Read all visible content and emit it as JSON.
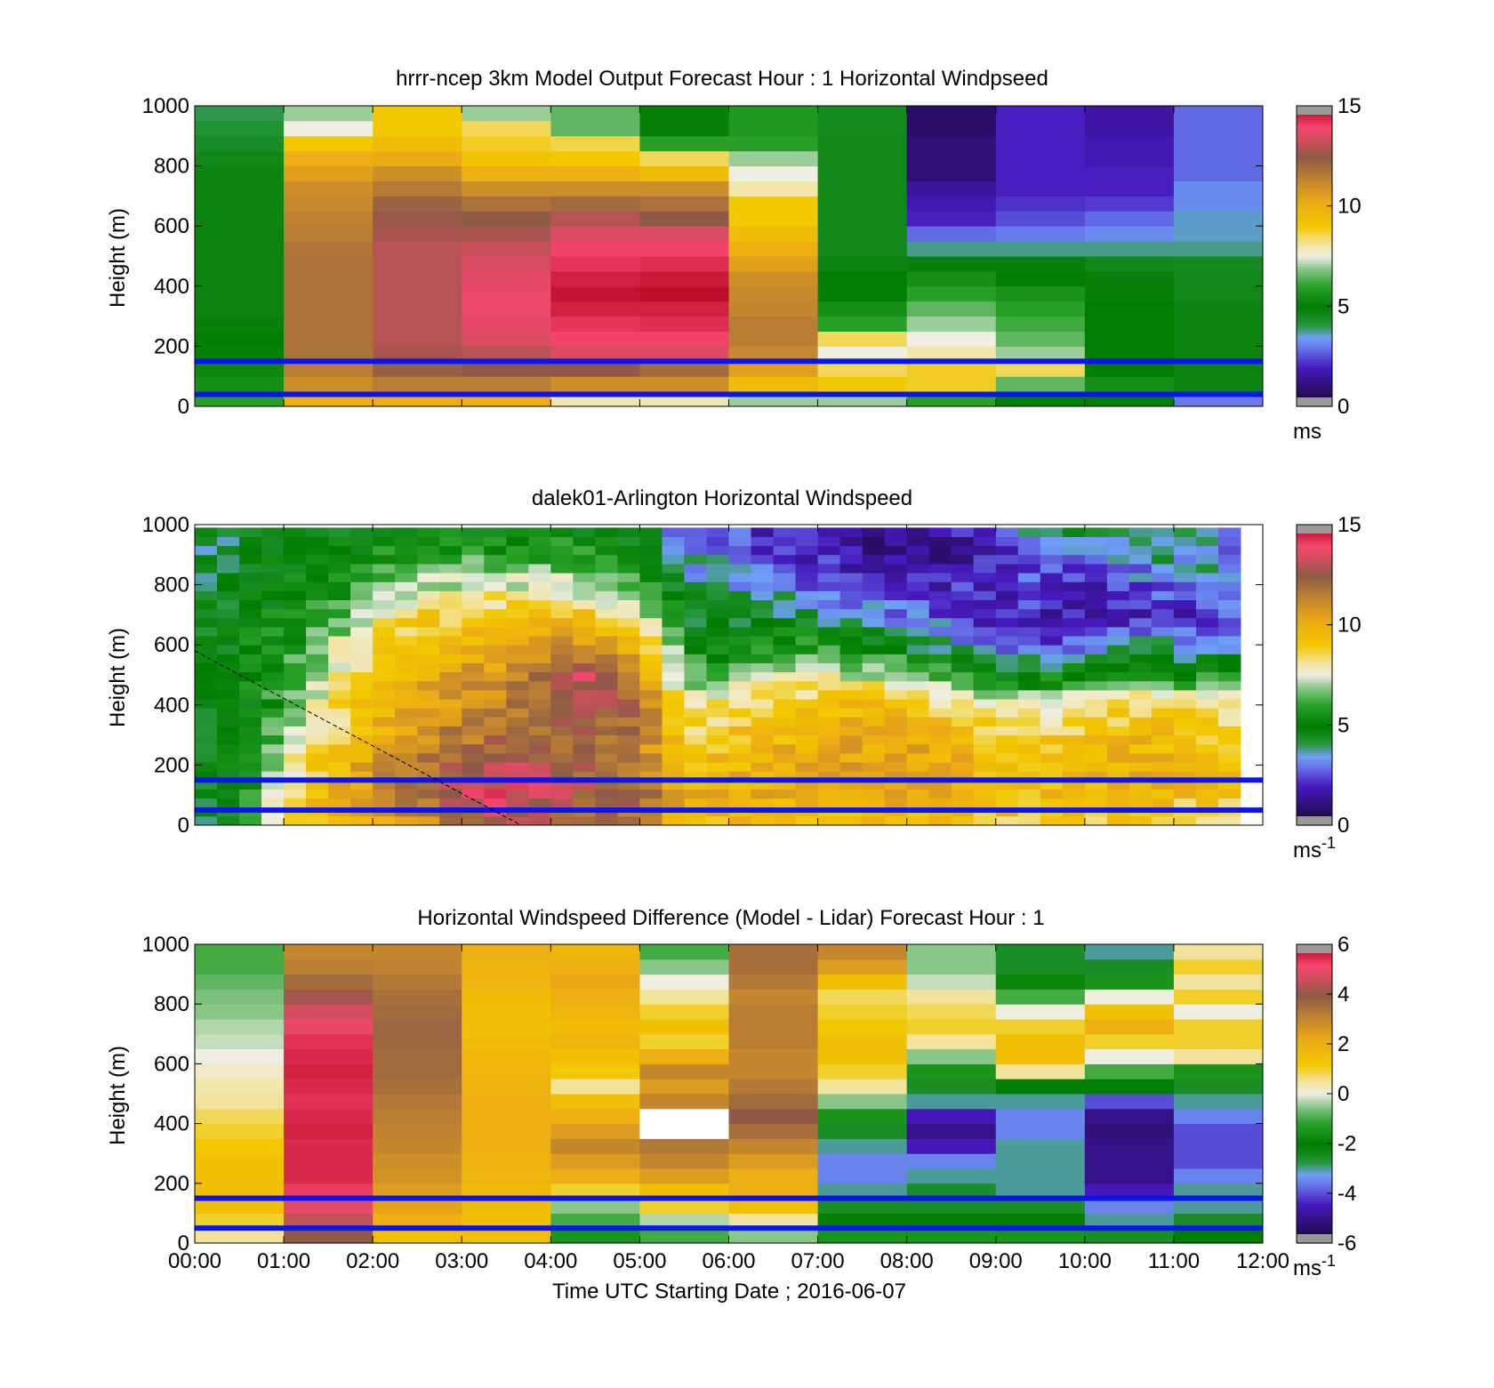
{
  "chart_data": [
    {
      "type": "heatmap",
      "title": "hrrr-ncep 3km Model Output   Forecast Hour : 1 Horizontal Windpseed",
      "ylabel": "Height (m)",
      "ylim": [
        0,
        1000
      ],
      "yticks": [
        "0",
        "200",
        "400",
        "600",
        "800",
        "1000"
      ],
      "x_hours": [
        "00:00",
        "01:00",
        "02:00",
        "03:00",
        "04:00",
        "05:00",
        "06:00",
        "07:00",
        "08:00",
        "09:00",
        "10:00",
        "11:00",
        "12:00"
      ],
      "height_levels": [
        25,
        75,
        125,
        175,
        225,
        275,
        325,
        375,
        425,
        475,
        525,
        575,
        625,
        675,
        725,
        775,
        825,
        875,
        925,
        975
      ],
      "values": [
        [
          6.0,
          5.5,
          5.3,
          5.1,
          4.9,
          4.8,
          4.7,
          4.7,
          4.7,
          4.7,
          4.7,
          4.7,
          4.7,
          4.7,
          4.7,
          4.7,
          4.6,
          4.4,
          4.2,
          4.0
        ],
        [
          10.0,
          11.0,
          11.5,
          11.8,
          11.8,
          11.8,
          11.8,
          11.8,
          11.8,
          11.8,
          11.7,
          11.5,
          11.4,
          11.2,
          11.0,
          10.5,
          10.0,
          9.0,
          7.5,
          7.0
        ],
        [
          10.0,
          11.5,
          12.3,
          12.8,
          13.0,
          13.0,
          13.0,
          13.0,
          13.0,
          13.0,
          13.0,
          12.8,
          12.6,
          12.2,
          11.6,
          11.0,
          10.2,
          9.5,
          9.0,
          9.0
        ],
        [
          10.0,
          11.5,
          12.5,
          13.0,
          13.5,
          13.7,
          13.8,
          13.8,
          13.7,
          13.5,
          13.2,
          12.8,
          12.4,
          11.8,
          11.0,
          10.0,
          9.2,
          8.8,
          8.5,
          7.0
        ],
        [
          8.0,
          11.0,
          12.5,
          13.5,
          14.0,
          14.2,
          14.5,
          14.7,
          14.5,
          14.2,
          14.0,
          13.5,
          13.0,
          12.0,
          11.0,
          10.0,
          9.0,
          8.6,
          6.5,
          6.5
        ],
        [
          8.0,
          11.0,
          12.0,
          13.5,
          14.0,
          14.3,
          14.5,
          14.8,
          14.6,
          14.3,
          14.0,
          13.5,
          12.5,
          11.8,
          11.0,
          9.5,
          8.5,
          6.0,
          4.8,
          4.8
        ],
        [
          7.0,
          9.5,
          10.5,
          11.2,
          11.5,
          11.5,
          11.3,
          11.2,
          11.0,
          10.5,
          10.0,
          9.5,
          9.0,
          9.0,
          8.0,
          7.5,
          7.0,
          6.0,
          5.8,
          5.8
        ],
        [
          7.0,
          9.0,
          8.5,
          7.5,
          8.5,
          6.0,
          5.5,
          5.0,
          4.9,
          4.7,
          4.6,
          4.6,
          4.6,
          4.6,
          4.6,
          4.6,
          4.6,
          4.6,
          4.5,
          4.5
        ],
        [
          6.0,
          8.8,
          8.8,
          8.0,
          7.5,
          7.0,
          6.5,
          6.0,
          5.5,
          4.8,
          3.8,
          2.8,
          2.0,
          1.8,
          1.5,
          1.0,
          1.0,
          1.0,
          0.8,
          0.8
        ],
        [
          5.0,
          6.5,
          8.5,
          7.0,
          6.5,
          6.2,
          6.0,
          5.6,
          5.0,
          4.8,
          3.8,
          3.0,
          2.5,
          2.2,
          2.0,
          2.0,
          2.0,
          2.0,
          2.0,
          2.0
        ],
        [
          5.0,
          5.5,
          5.0,
          5.0,
          5.0,
          5.0,
          4.9,
          4.8,
          4.8,
          4.6,
          3.8,
          3.2,
          2.8,
          2.3,
          2.0,
          2.0,
          1.8,
          1.8,
          1.6,
          1.6
        ],
        [
          3.0,
          4.7,
          4.7,
          4.7,
          4.7,
          4.7,
          4.7,
          4.6,
          4.6,
          4.5,
          3.8,
          3.6,
          3.6,
          3.2,
          3.2,
          2.8,
          2.8,
          2.8,
          2.8,
          2.8
        ]
      ],
      "colorbar": {
        "ticks": [
          "0",
          "5",
          "10",
          "15"
        ],
        "range": [
          0,
          15
        ],
        "unit": "ms"
      },
      "reference_lines_m": [
        40,
        150
      ]
    },
    {
      "type": "heatmap",
      "title": "dalek01-Arlington  Horizontal Windspeed",
      "ylabel": "Height (m)",
      "ylim": [
        0,
        1000
      ],
      "yticks": [
        "0",
        "200",
        "400",
        "600",
        "800",
        "1000"
      ],
      "x_hours": [
        "00:00",
        "01:00",
        "02:00",
        "03:00",
        "04:00",
        "05:00",
        "06:00",
        "07:00",
        "08:00",
        "09:00",
        "10:00",
        "11:00",
        "12:00"
      ],
      "profile_columns": 48,
      "height_levels": [
        15,
        45,
        75,
        105,
        135,
        165,
        195,
        225,
        255,
        285,
        315,
        345,
        375,
        405,
        435,
        465,
        495,
        525,
        555,
        585,
        615,
        645,
        675,
        705,
        735,
        765,
        795,
        825,
        855,
        885,
        915,
        945,
        975
      ],
      "anchor_times_h": [
        0.0,
        0.5,
        1.0,
        1.5,
        2.0,
        2.5,
        3.0,
        3.5,
        4.0,
        4.5,
        5.0,
        5.5,
        6.0,
        6.5,
        7.0,
        7.5,
        8.0,
        8.5,
        9.0,
        9.5,
        10.0,
        10.5,
        11.0,
        11.5,
        11.9
      ],
      "anchor_profiles": {
        "heights_m": [
          25,
          100,
          200,
          300,
          400,
          500,
          600,
          700,
          800,
          900,
          975
        ],
        "values": [
          [
            4.5,
            4.5,
            4.6,
            4.6,
            4.6,
            4.7,
            4.7,
            4.5,
            4.3,
            4.2,
            4.0
          ],
          [
            4.8,
            5.0,
            5.0,
            5.0,
            5.0,
            5.0,
            5.0,
            5.0,
            4.8,
            4.6,
            4.4
          ],
          [
            8.0,
            8.5,
            7.5,
            6.5,
            6.0,
            6.0,
            5.5,
            5.3,
            5.0,
            4.9,
            4.8
          ],
          [
            9.0,
            10.0,
            9.0,
            8.5,
            8.0,
            7.5,
            7.0,
            6.0,
            5.5,
            5.0,
            5.0
          ],
          [
            10.0,
            11.0,
            10.5,
            10.0,
            9.5,
            9.0,
            8.5,
            7.5,
            6.5,
            5.5,
            5.0
          ],
          [
            11.0,
            12.0,
            11.5,
            11.0,
            10.5,
            10.0,
            9.5,
            8.5,
            7.0,
            6.0,
            5.0
          ],
          [
            12.0,
            13.0,
            12.5,
            11.5,
            11.0,
            10.5,
            9.5,
            9.0,
            7.5,
            6.0,
            5.0
          ],
          [
            13.0,
            14.0,
            13.0,
            12.0,
            11.5,
            11.0,
            10.0,
            9.0,
            7.5,
            6.0,
            5.0
          ],
          [
            12.0,
            13.5,
            12.5,
            12.0,
            12.0,
            12.5,
            11.0,
            9.5,
            7.5,
            6.0,
            5.0
          ],
          [
            12.0,
            12.5,
            12.0,
            12.0,
            13.0,
            13.5,
            10.5,
            9.0,
            7.0,
            6.0,
            5.0
          ],
          [
            11.5,
            12.0,
            11.5,
            11.5,
            12.0,
            11.0,
            9.5,
            8.0,
            6.5,
            5.5,
            4.5
          ],
          [
            9.5,
            10.0,
            9.5,
            9.0,
            8.0,
            6.0,
            5.5,
            4.5,
            4.0,
            3.5,
            3.0
          ],
          [
            9.5,
            10.0,
            9.5,
            9.0,
            8.5,
            6.5,
            5.0,
            4.0,
            3.5,
            3.0,
            2.5
          ],
          [
            9.5,
            10.0,
            10.0,
            9.5,
            9.0,
            7.5,
            5.5,
            4.5,
            3.5,
            2.5,
            2.0
          ],
          [
            9.5,
            10.0,
            10.5,
            10.0,
            9.0,
            7.5,
            6.0,
            4.0,
            2.5,
            2.0,
            1.5
          ],
          [
            9.5,
            10.0,
            10.5,
            10.0,
            9.5,
            7.5,
            5.5,
            3.5,
            2.0,
            1.5,
            1.0
          ],
          [
            9.5,
            10.0,
            10.5,
            10.0,
            9.0,
            7.0,
            4.5,
            3.0,
            2.0,
            1.5,
            1.0
          ],
          [
            9.5,
            10.0,
            10.0,
            9.5,
            8.5,
            6.0,
            3.5,
            2.5,
            2.0,
            1.5,
            1.5
          ],
          [
            9.0,
            9.5,
            9.5,
            9.0,
            7.5,
            5.0,
            2.5,
            2.0,
            2.0,
            2.0,
            2.5
          ],
          [
            9.0,
            9.5,
            9.5,
            9.0,
            7.5,
            5.0,
            2.5,
            2.0,
            2.5,
            3.0,
            3.5
          ],
          [
            9.0,
            9.5,
            9.5,
            9.0,
            8.0,
            5.5,
            3.0,
            1.5,
            2.0,
            3.0,
            4.0
          ],
          [
            9.0,
            10.0,
            10.0,
            9.5,
            8.5,
            6.0,
            3.5,
            1.5,
            2.5,
            3.5,
            4.5
          ],
          [
            8.5,
            9.5,
            10.0,
            9.5,
            8.5,
            5.5,
            3.5,
            2.0,
            3.0,
            4.0,
            4.5
          ],
          [
            8.0,
            9.0,
            9.5,
            9.0,
            8.0,
            5.5,
            3.5,
            2.5,
            3.5,
            3.5,
            2.5
          ],
          [
            8.0,
            9.0,
            9.5,
            9.0,
            8.0,
            6.0,
            4.0,
            3.5,
            3.5,
            3.0,
            2.5
          ]
        ]
      },
      "missing_columns": [
        "11:50-12:00"
      ],
      "colorbar": {
        "ticks": [
          "0",
          "5",
          "10",
          "15"
        ],
        "range": [
          0,
          15
        ],
        "unit": "ms",
        "unit_superscript": "-1"
      },
      "reference_lines_m": [
        50,
        150
      ],
      "diagonal_line": {
        "from": [
          "00:00",
          580
        ],
        "to": [
          "03:40",
          0
        ]
      }
    },
    {
      "type": "heatmap",
      "title": "Horizontal Windspeed Difference (Model - Lidar) Forecast Hour : 1",
      "xlabel": "Time UTC  Starting Date ; 2016-06-07",
      "ylabel": "Height (m)",
      "ylim": [
        0,
        1000
      ],
      "yticks": [
        "0",
        "200",
        "400",
        "600",
        "800",
        "1000"
      ],
      "x_hours": [
        "00:00",
        "01:00",
        "02:00",
        "03:00",
        "04:00",
        "05:00",
        "06:00",
        "07:00",
        "08:00",
        "09:00",
        "10:00",
        "11:00",
        "12:00"
      ],
      "height_levels": [
        25,
        75,
        125,
        175,
        225,
        275,
        325,
        375,
        425,
        475,
        525,
        575,
        625,
        675,
        725,
        775,
        825,
        875,
        925,
        975
      ],
      "values": [
        [
          0.5,
          1.0,
          1.5,
          1.5,
          1.5,
          1.4,
          1.2,
          1.0,
          0.8,
          0.5,
          0.4,
          0.2,
          0.0,
          -0.2,
          -0.3,
          -0.5,
          -0.6,
          -0.8,
          -1.0,
          -1.0
        ],
        [
          4.0,
          4.5,
          5.0,
          5.3,
          5.5,
          5.5,
          5.5,
          5.6,
          5.5,
          5.4,
          5.5,
          5.6,
          5.5,
          5.4,
          5.0,
          4.7,
          4.2,
          3.6,
          3.2,
          3.0
        ],
        [
          1.5,
          2.0,
          2.3,
          2.5,
          2.7,
          2.8,
          3.0,
          3.1,
          3.2,
          3.3,
          3.5,
          3.6,
          3.6,
          3.7,
          3.7,
          3.6,
          3.5,
          3.3,
          3.1,
          3.0
        ],
        [
          1.5,
          1.5,
          1.6,
          1.7,
          1.8,
          1.9,
          2.0,
          2.0,
          2.0,
          2.0,
          1.9,
          1.8,
          1.7,
          1.6,
          1.5,
          1.5,
          1.6,
          1.8,
          1.9,
          2.0
        ],
        [
          -1.5,
          -1.0,
          -0.5,
          1.0,
          2.0,
          2.5,
          3.0,
          2.5,
          2.0,
          1.5,
          0.5,
          1.2,
          1.5,
          1.8,
          1.6,
          1.8,
          2.0,
          2.2,
          2.0,
          1.8
        ],
        [
          -1.0,
          -0.3,
          1.0,
          1.5,
          2.5,
          3.0,
          3.3,
          null,
          null,
          3.0,
          2.5,
          3.0,
          2.0,
          1.0,
          1.5,
          1.0,
          0.5,
          0.0,
          -0.5,
          -1.0
        ],
        [
          -0.5,
          0.5,
          1.5,
          2.0,
          2.0,
          2.5,
          3.0,
          3.5,
          4.0,
          3.6,
          3.3,
          3.0,
          3.0,
          3.2,
          3.2,
          3.2,
          3.0,
          3.3,
          3.5,
          3.5
        ],
        [
          -1.5,
          -2.0,
          -2.5,
          -3.0,
          -3.5,
          -3.5,
          -3.0,
          -2.5,
          -1.5,
          -0.5,
          0.5,
          1.0,
          1.5,
          1.5,
          1.2,
          1.0,
          0.8,
          1.5,
          2.5,
          3.0
        ],
        [
          -1.5,
          -2.0,
          -2.5,
          -2.5,
          -3.0,
          -3.5,
          -4.5,
          -5.0,
          -4.5,
          -3.0,
          -2.5,
          -1.5,
          -0.5,
          0.5,
          1.0,
          0.8,
          0.5,
          -0.2,
          -0.5,
          -0.5
        ],
        [
          -1.5,
          -2.0,
          -2.5,
          -3.0,
          -3.0,
          -3.0,
          -3.0,
          -3.5,
          -3.5,
          -3.0,
          -2.0,
          0.5,
          1.5,
          1.5,
          1.0,
          0.0,
          -1.0,
          -1.8,
          -2.5,
          -2.5
        ],
        [
          -2.5,
          -3.0,
          -3.5,
          -4.5,
          -5.0,
          -5.0,
          -5.0,
          -5.2,
          -5.0,
          -4.0,
          -2.0,
          -1.0,
          0.0,
          1.0,
          2.0,
          1.5,
          0.0,
          -1.5,
          -2.5,
          -3.0
        ],
        [
          -2.0,
          -2.5,
          -3.0,
          -3.0,
          -3.5,
          -4.0,
          -4.0,
          -4.0,
          -3.5,
          -3.0,
          -2.5,
          -1.5,
          0.5,
          1.0,
          1.0,
          0.0,
          1.0,
          0.5,
          1.0,
          0.5
        ]
      ],
      "colorbar": {
        "ticks": [
          "-6",
          "-4",
          "-2",
          "0",
          "2",
          "4",
          "6"
        ],
        "range": [
          -6,
          6
        ],
        "unit": "ms",
        "unit_superscript": "-1"
      },
      "reference_lines_m": [
        50,
        150
      ]
    }
  ]
}
